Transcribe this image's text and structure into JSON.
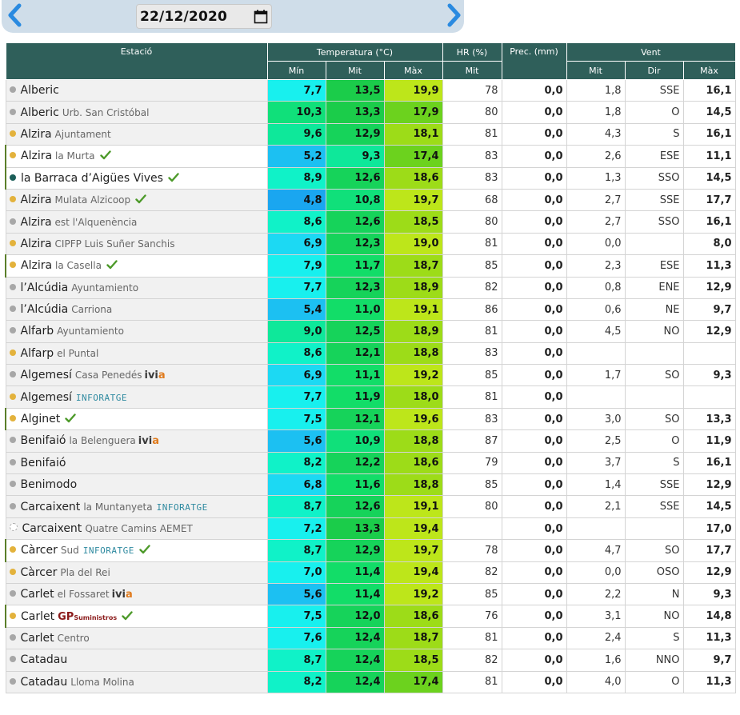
{
  "date": "22/12/2020",
  "icons": {
    "prev": "chevron-left-icon",
    "next": "chevron-right-icon",
    "calendar": "calendar-icon",
    "check": "check-icon"
  },
  "colors": {
    "header": "#2f5f5a",
    "scale": {
      "4": "#1aa6f0",
      "5": "#1cc0f2",
      "6": "#1cd9f3",
      "7": "#18f0ee",
      "8": "#10f2c8",
      "9": "#0ee89a",
      "10": "#10e07a",
      "11": "#12dd68",
      "12": "#16d35a",
      "13": "#1bcc4a",
      "14": "#3ccc32",
      "17": "#6cd21e",
      "18": "#9ddc18",
      "19": "#bde61a"
    }
  },
  "headers": {
    "station": "Estació",
    "temperature": "Temperatura (°C)",
    "humidity": "HR (%)",
    "precipitation": "Prec. (mm)",
    "wind": "Vent",
    "min": "Mín",
    "mit": "Mit",
    "max": "Màx",
    "hr_mit": "Mit",
    "wind_mit": "Mit",
    "wind_dir": "Dir",
    "wind_max": "Màx"
  },
  "rows": [
    {
      "name": "Alberic",
      "sub": "",
      "dot": "grey",
      "tmin": "7,7",
      "tmit": "13,5",
      "tmax": "19,9",
      "hr": "78",
      "prec": "0,0",
      "vmit": "1,8",
      "vdir": "SSE",
      "vmax": "16,1"
    },
    {
      "name": "Alberic",
      "sub": "Urb. San Cristóbal",
      "dot": "grey",
      "tmin": "10,3",
      "tmit": "13,3",
      "tmax": "17,9",
      "hr": "80",
      "prec": "0,0",
      "vmit": "1,8",
      "vdir": "O",
      "vmax": "14,5"
    },
    {
      "name": "Alzira",
      "sub": "Ajuntament",
      "dot": "orange",
      "tmin": "9,6",
      "tmit": "12,9",
      "tmax": "18,1",
      "hr": "81",
      "prec": "0,0",
      "vmit": "4,3",
      "vdir": "S",
      "vmax": "16,1"
    },
    {
      "name": "Alzira",
      "sub": "la Murta",
      "dot": "orange",
      "check": true,
      "hl": true,
      "tmin": "5,2",
      "tmit": "9,3",
      "tmax": "17,4",
      "hr": "83",
      "prec": "0,0",
      "vmit": "2,6",
      "vdir": "ESE",
      "vmax": "11,1"
    },
    {
      "name": "la Barraca d’Aigües Vives",
      "sub": "",
      "dot": "teal",
      "check": true,
      "hl": true,
      "tmin": "8,9",
      "tmit": "12,6",
      "tmax": "18,6",
      "hr": "83",
      "prec": "0,0",
      "vmit": "1,3",
      "vdir": "SSO",
      "vmax": "14,5"
    },
    {
      "name": "Alzira",
      "sub": "Mulata Alzicoop",
      "dot": "orange",
      "check": true,
      "tmin": "4,8",
      "tmit": "10,8",
      "tmax": "19,7",
      "hr": "68",
      "prec": "0,0",
      "vmit": "2,7",
      "vdir": "SSE",
      "vmax": "17,7"
    },
    {
      "name": "Alzira",
      "sub": "est l'Alquenència",
      "dot": "grey",
      "tmin": "8,6",
      "tmit": "12,6",
      "tmax": "18,5",
      "hr": "80",
      "prec": "0,0",
      "vmit": "2,7",
      "vdir": "SSO",
      "vmax": "16,1"
    },
    {
      "name": "Alzira",
      "sub": "CIPFP Luis Suñer Sanchis",
      "dot": "orange",
      "tmin": "6,9",
      "tmit": "12,3",
      "tmax": "19,0",
      "hr": "81",
      "prec": "0,0",
      "vmit": "0,0",
      "vdir": "",
      "vmax": "8,0"
    },
    {
      "name": "Alzira",
      "sub": "la Casella",
      "dot": "orange",
      "check": true,
      "hl": true,
      "tmin": "7,9",
      "tmit": "11,7",
      "tmax": "18,7",
      "hr": "85",
      "prec": "0,0",
      "vmit": "2,3",
      "vdir": "ESE",
      "vmax": "11,3"
    },
    {
      "name": "l’Alcúdia",
      "sub": "Ayuntamiento",
      "dot": "grey",
      "tmin": "7,7",
      "tmit": "12,3",
      "tmax": "18,9",
      "hr": "82",
      "prec": "0,0",
      "vmit": "0,8",
      "vdir": "ENE",
      "vmax": "12,9"
    },
    {
      "name": "l’Alcúdia",
      "sub": "Carriona",
      "dot": "grey",
      "tmin": "5,4",
      "tmit": "11,0",
      "tmax": "19,1",
      "hr": "86",
      "prec": "0,0",
      "vmit": "0,6",
      "vdir": "NE",
      "vmax": "9,7"
    },
    {
      "name": "Alfarb",
      "sub": "Ayuntamiento",
      "dot": "grey",
      "tmin": "9,0",
      "tmit": "12,5",
      "tmax": "18,9",
      "hr": "81",
      "prec": "0,0",
      "vmit": "4,5",
      "vdir": "NO",
      "vmax": "12,9"
    },
    {
      "name": "Alfarp",
      "sub": "el Puntal",
      "dot": "orange",
      "tmin": "8,6",
      "tmit": "12,1",
      "tmax": "18,8",
      "hr": "83",
      "prec": "0,0",
      "vmit": "",
      "vdir": "",
      "vmax": ""
    },
    {
      "name": "Algemesí",
      "sub": "Casa Penedés",
      "dot": "grey",
      "brand": "ivia",
      "tmin": "6,9",
      "tmit": "11,1",
      "tmax": "19,2",
      "hr": "85",
      "prec": "0,0",
      "vmit": "1,7",
      "vdir": "SO",
      "vmax": "9,3"
    },
    {
      "name": "Algemesí",
      "sub": "",
      "dot": "orange",
      "brand": "inforatge",
      "tmin": "7,7",
      "tmit": "11,9",
      "tmax": "18,0",
      "hr": "81",
      "prec": "0,0",
      "vmit": "",
      "vdir": "",
      "vmax": ""
    },
    {
      "name": "Alginet",
      "sub": "",
      "dot": "orange",
      "check": true,
      "hl": true,
      "tmin": "7,5",
      "tmit": "12,1",
      "tmax": "19,6",
      "hr": "83",
      "prec": "0,0",
      "vmit": "3,0",
      "vdir": "SO",
      "vmax": "13,3"
    },
    {
      "name": "Benifaió",
      "sub": "la Belenguera",
      "dot": "grey",
      "brand": "ivia",
      "tmin": "5,6",
      "tmit": "10,9",
      "tmax": "18,8",
      "hr": "87",
      "prec": "0,0",
      "vmit": "2,5",
      "vdir": "O",
      "vmax": "11,9"
    },
    {
      "name": "Benifaió",
      "sub": "",
      "dot": "grey",
      "tmin": "8,2",
      "tmit": "12,2",
      "tmax": "18,6",
      "hr": "79",
      "prec": "0,0",
      "vmit": "3,7",
      "vdir": "S",
      "vmax": "16,1"
    },
    {
      "name": "Benimodo",
      "sub": "",
      "dot": "grey",
      "tmin": "6,8",
      "tmit": "11,6",
      "tmax": "18,8",
      "hr": "85",
      "prec": "0,0",
      "vmit": "1,4",
      "vdir": "SSE",
      "vmax": "12,9"
    },
    {
      "name": "Carcaixent",
      "sub": "la Muntanyeta",
      "dot": "grey",
      "brand": "inforatge",
      "tmin": "8,7",
      "tmit": "12,6",
      "tmax": "19,1",
      "hr": "80",
      "prec": "0,0",
      "vmit": "2,1",
      "vdir": "SSE",
      "vmax": "14,5"
    },
    {
      "name": "Carcaixent",
      "sub": "Quatre Camins AEMET",
      "dot": "hollow",
      "tmin": "7,2",
      "tmit": "13,3",
      "tmax": "19,4",
      "hr": "",
      "prec": "0,0",
      "vmit": "",
      "vdir": "",
      "vmax": "17,0"
    },
    {
      "name": "Càrcer",
      "sub": "Sud",
      "dot": "orange",
      "brand": "inforatge",
      "check": true,
      "hl": true,
      "tmin": "8,7",
      "tmit": "12,9",
      "tmax": "19,7",
      "hr": "78",
      "prec": "0,0",
      "vmit": "4,7",
      "vdir": "SO",
      "vmax": "17,7"
    },
    {
      "name": "Càrcer",
      "sub": "Pla del Rei",
      "dot": "orange",
      "tmin": "7,0",
      "tmit": "11,4",
      "tmax": "19,4",
      "hr": "82",
      "prec": "0,0",
      "vmit": "0,0",
      "vdir": "OSO",
      "vmax": "12,9"
    },
    {
      "name": "Carlet",
      "sub": "el Fossaret",
      "dot": "grey",
      "brand": "ivia",
      "tmin": "5,6",
      "tmit": "11,4",
      "tmax": "19,2",
      "hr": "85",
      "prec": "0,0",
      "vmit": "2,2",
      "vdir": "N",
      "vmax": "9,3"
    },
    {
      "name": "Carlet",
      "sub": "",
      "dot": "orange",
      "brand": "gp",
      "check": true,
      "hl": true,
      "tmin": "7,5",
      "tmit": "12,0",
      "tmax": "18,6",
      "hr": "76",
      "prec": "0,0",
      "vmit": "3,1",
      "vdir": "NO",
      "vmax": "14,8"
    },
    {
      "name": "Carlet",
      "sub": "Centro",
      "dot": "grey",
      "tmin": "7,6",
      "tmit": "12,4",
      "tmax": "18,7",
      "hr": "81",
      "prec": "0,0",
      "vmit": "2,4",
      "vdir": "S",
      "vmax": "11,3"
    },
    {
      "name": "Catadau",
      "sub": "",
      "dot": "grey",
      "tmin": "8,7",
      "tmit": "12,4",
      "tmax": "18,5",
      "hr": "82",
      "prec": "0,0",
      "vmit": "1,6",
      "vdir": "NNO",
      "vmax": "9,7"
    },
    {
      "name": "Catadau",
      "sub": "Lloma Molina",
      "dot": "grey",
      "tmin": "8,2",
      "tmit": "12,4",
      "tmax": "17,4",
      "hr": "81",
      "prec": "0,0",
      "vmit": "4,0",
      "vdir": "O",
      "vmax": "11,3"
    }
  ],
  "brands": {
    "ivia_main": "ivi",
    "ivia_accent": "a",
    "inforatge": "INFORATGE",
    "gp": "GP",
    "gp_sub": "Suministros"
  }
}
